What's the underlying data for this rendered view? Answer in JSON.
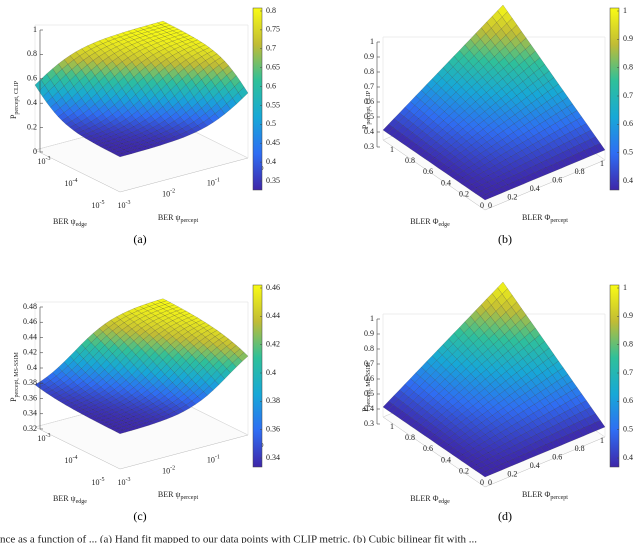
{
  "panels": [
    {
      "label": "(a)",
      "z_label": {
        "main": "P",
        "sub": "percept, CLIP"
      },
      "x_label": {
        "main": "BER ψ",
        "sub": "edge"
      },
      "y_label": {
        "main": "BER ψ",
        "sub": "percept"
      },
      "z_ticks": [
        1,
        0.8,
        0.6,
        0.4,
        0.2,
        0
      ],
      "x_ticks": [
        {
          "base": "10",
          "exp": "-3"
        },
        {
          "base": "10",
          "exp": "-4"
        },
        {
          "base": "10",
          "exp": "-5"
        }
      ],
      "y_ticks": [
        {
          "base": "10",
          "exp": "-3"
        },
        {
          "base": "10",
          "exp": "-2"
        },
        {
          "base": "10",
          "exp": "-1"
        },
        {
          "base": "10",
          "exp": "0"
        }
      ],
      "colorbar_ticks": [
        0.8,
        0.75,
        0.7,
        0.65,
        0.6,
        0.55,
        0.5,
        0.45,
        0.4,
        0.35
      ]
    },
    {
      "label": "(b)",
      "z_label": {
        "main": "P",
        "sub": "percept, CLIP"
      },
      "x_label": {
        "main": "BLER Φ",
        "sub": "edge"
      },
      "y_label": {
        "main": "BLER Φ",
        "sub": "percept"
      },
      "z_ticks": [
        1,
        0.9,
        0.8,
        0.7,
        0.6,
        0.5,
        0.4,
        0.3
      ],
      "x_ticks": [
        1,
        0.8,
        0.6,
        0.4,
        0.2,
        0
      ],
      "y_ticks": [
        0,
        0.2,
        0.4,
        0.6,
        0.8,
        1
      ],
      "colorbar_ticks": [
        1,
        0.9,
        0.8,
        0.7,
        0.6,
        0.5,
        0.4
      ]
    },
    {
      "label": "(c)",
      "z_label": {
        "main": "P",
        "sub": "percept, MS-SSIM"
      },
      "x_label": {
        "main": "BER ψ",
        "sub": "edge"
      },
      "y_label": {
        "main": "BER ψ",
        "sub": "percept"
      },
      "z_ticks": [
        0.48,
        0.46,
        0.44,
        0.42,
        0.4,
        0.38,
        0.36,
        0.34,
        0.32
      ],
      "x_ticks": [
        {
          "base": "10",
          "exp": "-3"
        },
        {
          "base": "10",
          "exp": "-4"
        },
        {
          "base": "10",
          "exp": "-5"
        }
      ],
      "y_ticks": [
        {
          "base": "10",
          "exp": "-3"
        },
        {
          "base": "10",
          "exp": "-2"
        },
        {
          "base": "10",
          "exp": "-1"
        },
        {
          "base": "10",
          "exp": "0"
        }
      ],
      "colorbar_ticks": [
        0.46,
        0.44,
        0.42,
        0.4,
        0.38,
        0.36,
        0.34
      ]
    },
    {
      "label": "(d)",
      "z_label": {
        "main": "P",
        "sub": "percept, MS-SSIM"
      },
      "x_label": {
        "main": "BLER Φ",
        "sub": "edge"
      },
      "y_label": {
        "main": "BLER Φ",
        "sub": "percept"
      },
      "z_ticks": [
        1,
        0.9,
        0.8,
        0.7,
        0.6,
        0.5,
        0.4,
        0.3
      ],
      "x_ticks": [
        1,
        0.8,
        0.6,
        0.4,
        0.2,
        0
      ],
      "y_ticks": [
        0,
        0.2,
        0.4,
        0.6,
        0.8,
        1
      ],
      "colorbar_ticks": [
        1,
        0.9,
        0.8,
        0.7,
        0.6,
        0.5,
        0.4
      ]
    }
  ],
  "caption": "nce as a function of ... (a) Hand fit mapped to our data points with CLIP metric. (b) Cubic bilinear fit with ..."
}
